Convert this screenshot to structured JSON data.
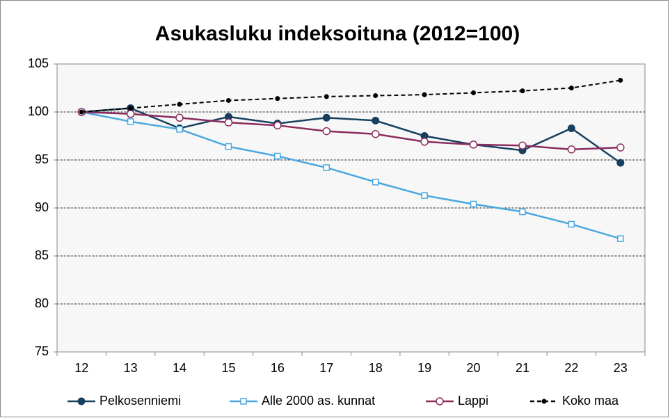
{
  "chart_data": {
    "type": "line",
    "title": "Asukasluku indeksoituna (2012=100)",
    "categories": [
      "12",
      "13",
      "14",
      "15",
      "16",
      "17",
      "18",
      "19",
      "20",
      "21",
      "22",
      "23"
    ],
    "series": [
      {
        "name": "Pelkosenniemi",
        "color": "#17405f",
        "marker": "circle",
        "dash": false,
        "values": [
          100,
          100.4,
          98.3,
          99.5,
          98.8,
          99.4,
          99.1,
          97.5,
          96.6,
          96.0,
          98.3,
          94.7
        ]
      },
      {
        "name": "Alle 2000 as. kunnat",
        "color": "#4aa8e0",
        "marker": "square",
        "dash": false,
        "values": [
          100,
          99.0,
          98.2,
          96.4,
          95.4,
          94.2,
          92.7,
          91.3,
          90.4,
          89.6,
          88.3,
          86.8
        ]
      },
      {
        "name": "Lappi",
        "color": "#8b2c5f",
        "marker": "open-circle",
        "dash": false,
        "values": [
          100,
          99.8,
          99.4,
          98.9,
          98.6,
          98.0,
          97.7,
          96.9,
          96.6,
          96.5,
          96.1,
          96.3
        ]
      },
      {
        "name": "Koko maa",
        "color": "#000000",
        "marker": "small-circle",
        "dash": true,
        "values": [
          100,
          100.4,
          100.8,
          101.2,
          101.4,
          101.6,
          101.7,
          101.8,
          102.0,
          102.2,
          102.5,
          103.3
        ]
      }
    ],
    "ylim": [
      75,
      105
    ],
    "yticks": [
      75,
      80,
      85,
      90,
      95,
      100,
      105
    ],
    "grid": true,
    "legend": "bottom"
  }
}
